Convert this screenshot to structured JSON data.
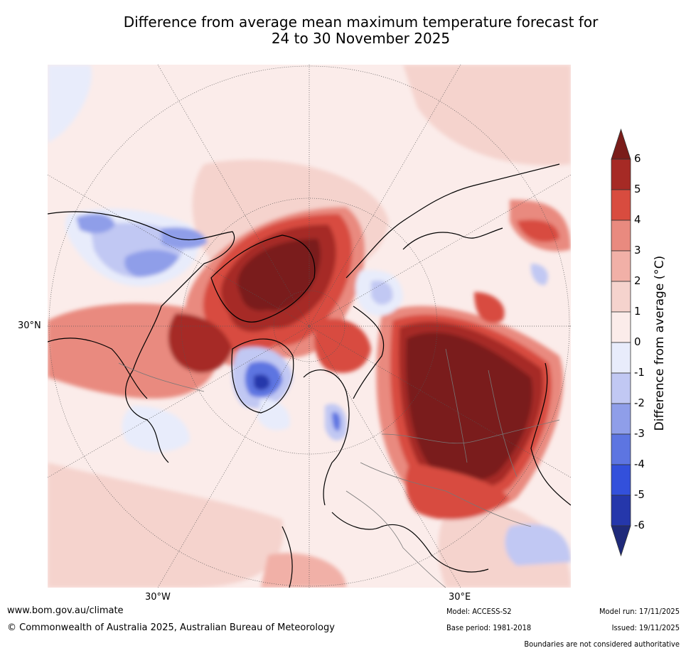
{
  "title": {
    "line1": "Difference from average mean maximum temperature forecast for",
    "line2": "24 to 30 November 2025"
  },
  "axes": {
    "lat_label": "30°N",
    "lon_label_west": "30°W",
    "lon_label_east": "30°E"
  },
  "colorbar": {
    "label": "Difference from average (°C)",
    "ticks": [
      "6",
      "5",
      "4",
      "3",
      "2",
      "1",
      "0",
      "-1",
      "-2",
      "-3",
      "-4",
      "-5",
      "-6"
    ],
    "colors": [
      "#7a1d1a",
      "#a62a25",
      "#d84c3f",
      "#e98a7f",
      "#f1b0a7",
      "#f5d3cd",
      "#fbecea",
      "#e8ecfb",
      "#c1c8f3",
      "#8f9ee9",
      "#5d75e1",
      "#3350db",
      "#2537ab",
      "#1f2a7a"
    ],
    "over_color": "#7a1d1a",
    "under_color": "#1f2a7a"
  },
  "footer": {
    "website": "www.bom.gov.au/climate",
    "copyright": "© Commonwealth of Australia 2025, Australian Bureau of Meteorology",
    "model": "Model: ACCESS-S2",
    "base_period": "Base period: 1981-2018",
    "model_run": "Model run: 17/11/2025",
    "issued": "Issued: 19/11/2025",
    "disclaimer": "Boundaries are not considered authoritative"
  }
}
